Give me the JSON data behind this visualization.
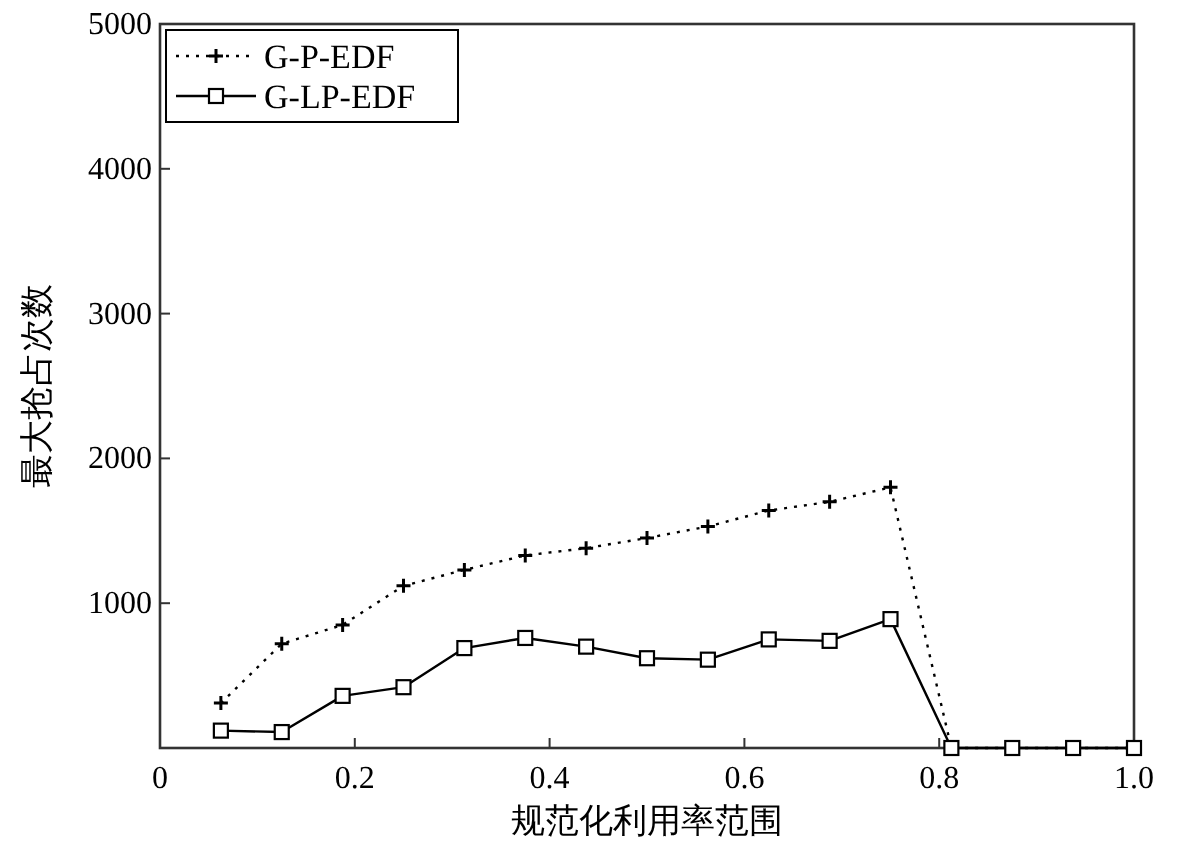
{
  "chart_data": {
    "type": "line",
    "xlabel": "规范化利用率范围",
    "ylabel": "最大抢占次数",
    "xlim": [
      0,
      1.0
    ],
    "ylim": [
      0,
      5000
    ],
    "xticks": [
      0,
      0.2,
      0.4,
      0.6,
      0.8,
      {
        "value": 1.0,
        "label": "1.0"
      }
    ],
    "yticks": [
      {
        "value": 0,
        "label": null
      },
      1000,
      2000,
      3000,
      4000,
      5000
    ],
    "x": [
      0.0625,
      0.125,
      0.1875,
      0.25,
      0.3125,
      0.375,
      0.4375,
      0.5,
      0.5625,
      0.625,
      0.6875,
      0.75,
      0.8125,
      0.875,
      0.9375,
      1.0
    ],
    "grid": false,
    "legend": "top left",
    "series": [
      {
        "name": "G-P-EDF",
        "color": "#000000",
        "marker": "cross",
        "line_style": "dotted",
        "values": [
          310,
          720,
          850,
          1120,
          1230,
          1330,
          1380,
          1450,
          1530,
          1640,
          1700,
          1800,
          0,
          0,
          0,
          0
        ]
      },
      {
        "name": "G-LP-EDF",
        "color": "#000000",
        "marker": "square",
        "line_style": "solid",
        "values": [
          120,
          110,
          360,
          420,
          690,
          760,
          700,
          620,
          610,
          750,
          740,
          890,
          0,
          0,
          0,
          0
        ]
      }
    ]
  }
}
